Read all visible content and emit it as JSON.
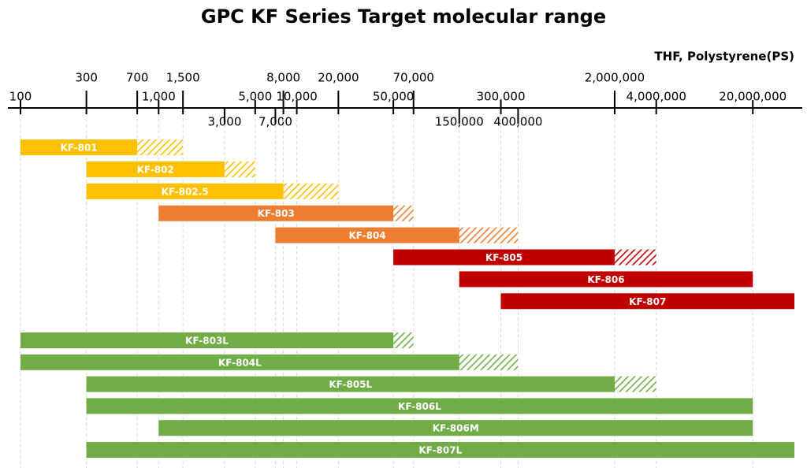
{
  "chart_data": {
    "type": "range-bar",
    "title": "GPC KF Series Target molecular range",
    "xlabel": "THF, Polystyrene(PS)",
    "xscale": "log",
    "xlim": [
      100,
      40000000
    ],
    "xticks": [
      100,
      300,
      700,
      {
        "value": 1000,
        "label": "1,000"
      },
      {
        "value": 1500,
        "label": "1,500"
      },
      {
        "value": 3000,
        "label": "3,000"
      },
      {
        "value": 5000,
        "label": "5,000"
      },
      {
        "value": 7000,
        "label": "7,000"
      },
      {
        "value": 8000,
        "label": "8,000"
      },
      {
        "value": 10000,
        "label": "10,000"
      },
      {
        "value": 20000,
        "label": "20,000"
      },
      {
        "value": 50000,
        "label": "50,000"
      },
      {
        "value": 70000,
        "label": "70,000"
      },
      {
        "value": 150000,
        "label": "150,000"
      },
      {
        "value": 300000,
        "label": "300,000"
      },
      {
        "value": 400000,
        "label": "400,000"
      },
      {
        "value": 2000000,
        "label": "2,000,000"
      },
      {
        "value": 4000000,
        "label": "4,000,000"
      },
      {
        "value": 20000000,
        "label": "20,000,000"
      }
    ],
    "grid": true,
    "series": [
      {
        "name": "KF-801",
        "color": "#ffc000",
        "values": [
          100,
          700
        ],
        "extension": 1500
      },
      {
        "name": "KF-802",
        "color": "#ffc000",
        "values": [
          300,
          3000
        ],
        "extension": 5000
      },
      {
        "name": "KF-802.5",
        "color": "#ffc000",
        "values": [
          300,
          8000
        ],
        "extension": 20000
      },
      {
        "name": "KF-803",
        "color": "#ed7d31",
        "values": [
          1000,
          50000
        ],
        "extension": 70000
      },
      {
        "name": "KF-804",
        "color": "#ed7d31",
        "values": [
          7000,
          150000
        ],
        "extension": 400000
      },
      {
        "name": "KF-805",
        "color": "#c00000",
        "values": [
          50000,
          2000000
        ],
        "extension": 4000000
      },
      {
        "name": "KF-806",
        "color": "#c00000",
        "values": [
          150000,
          20000000
        ],
        "extension": null
      },
      {
        "name": "KF-807",
        "color": "#c00000",
        "values": [
          300000,
          40000000
        ],
        "extension": null
      },
      {
        "name": "KF-803L",
        "color": "#70ad47",
        "values": [
          100,
          50000
        ],
        "extension": 70000
      },
      {
        "name": "KF-804L",
        "color": "#70ad47",
        "values": [
          100,
          150000
        ],
        "extension": 400000
      },
      {
        "name": "KF-805L",
        "color": "#70ad47",
        "values": [
          300,
          2000000
        ],
        "extension": 4000000
      },
      {
        "name": "KF-806L",
        "color": "#70ad47",
        "values": [
          300,
          20000000
        ],
        "extension": null
      },
      {
        "name": "KF-806M",
        "color": "#70ad47",
        "values": [
          1000,
          20000000
        ],
        "extension": null
      },
      {
        "name": "KF-807L",
        "color": "#70ad47",
        "values": [
          300,
          40000000
        ],
        "extension": null
      }
    ]
  }
}
